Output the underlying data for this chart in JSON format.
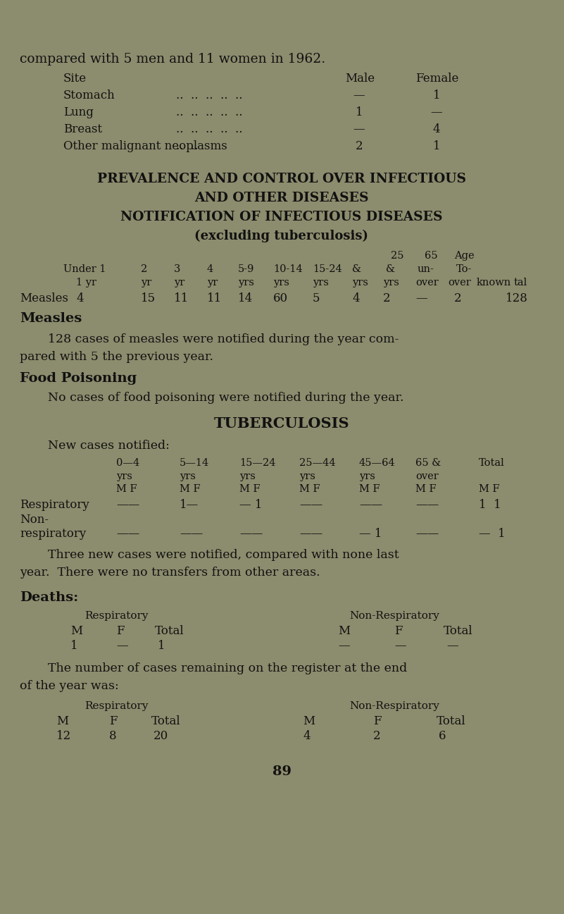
{
  "bg_color": "#8c8c6e",
  "text_color": "#111111",
  "page_number": "89",
  "intro_line": "compared with 5 men and 11 women in 1962.",
  "site_header_site": "Site",
  "site_header_male": "Male",
  "site_header_female": "Female",
  "site_rows": [
    [
      "Stomach",
      "..  ..  ..  ..  ..",
      "—",
      "1"
    ],
    [
      "Lung",
      "..  ..  ..  ..  ..",
      "1",
      "—"
    ],
    [
      "Breast",
      "..  ..  ..  ..  ..",
      "—",
      "4"
    ],
    [
      "Other malignant neoplasms",
      "..  ..",
      "2",
      "1"
    ]
  ],
  "section_title1": "PREVALENCE AND CONTROL OVER INFECTIOUS",
  "section_title2": "AND OTHER DISEASES",
  "section_title3": "NOTIFICATION OF INFECTIOUS DISEASES",
  "section_title4": "(excluding tuberculosis)",
  "measles_bold_heading": "Measles",
  "measles_para1": "128 cases of measles were notified during the year com-",
  "measles_para2": "pared with 5 the previous year.",
  "food_heading": "Food Poisoning",
  "food_para": "No cases of food poisoning were notified during the year.",
  "tb_heading": "TUBERCULOSIS",
  "tb_new_cases": "New cases notified:",
  "tb_para1": "Three new cases were notified, compared with none last",
  "tb_para2": "year.  There were no transfers from other areas.",
  "deaths_heading": "Deaths:",
  "register_para1": "The number of cases remaining on the register at the end",
  "register_para2": "of the year was:"
}
